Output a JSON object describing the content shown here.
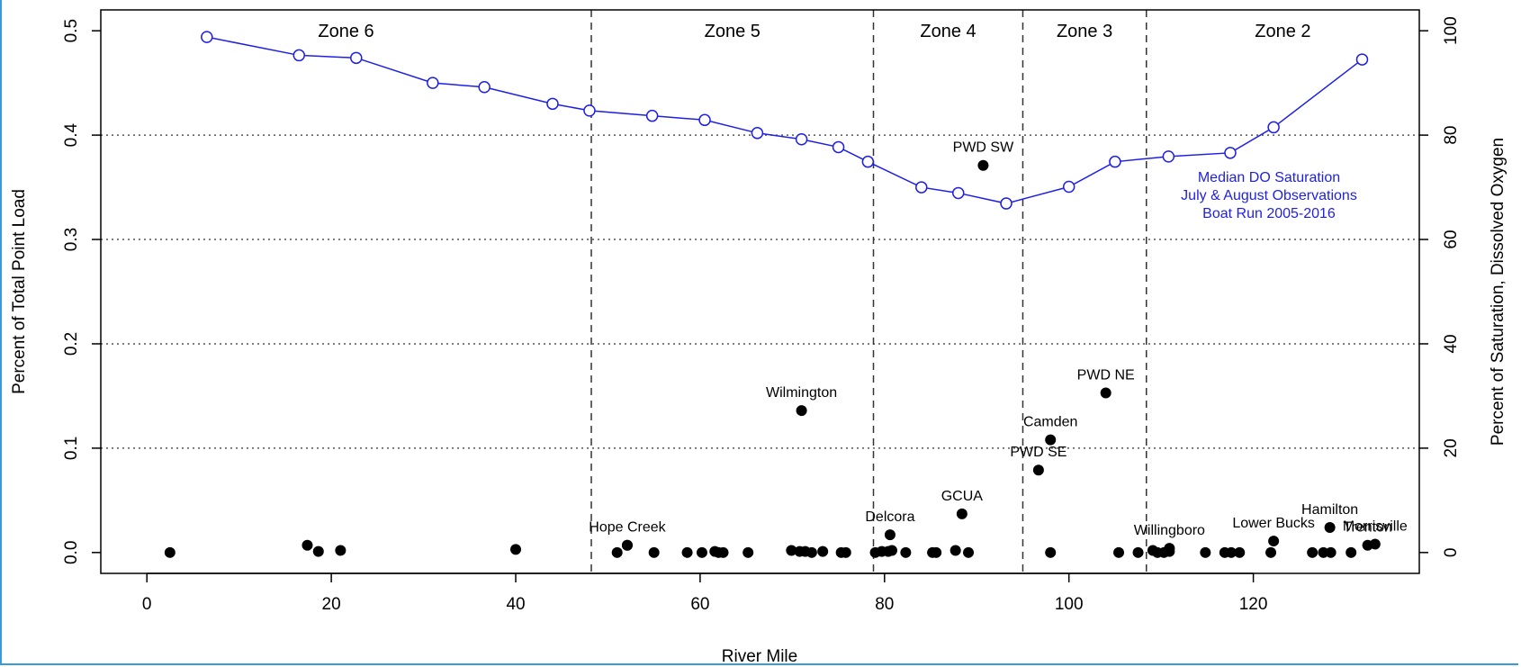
{
  "chart_data": {
    "type": "scatter",
    "xlabel": "River Mile",
    "ylabel_left": "Percent of Total Point Load",
    "ylabel_right": "Percent of Saturation, Dissolved Oxygen",
    "xlim": [
      -5,
      138
    ],
    "ylim_left": [
      -0.02,
      0.52
    ],
    "ylim_right": [
      -4,
      104
    ],
    "x_ticks": [
      0,
      20,
      40,
      60,
      80,
      100,
      120
    ],
    "y_left_ticks": [
      0.0,
      0.1,
      0.2,
      0.3,
      0.4,
      0.5
    ],
    "y_left_tick_labels": [
      "0.0",
      "0.1",
      "0.2",
      "0.3",
      "0.4",
      "0.5"
    ],
    "y_right_ticks": [
      0,
      20,
      40,
      60,
      80,
      100
    ],
    "gridlines_y_left": [
      0.1,
      0.2,
      0.3,
      0.4
    ],
    "zones": [
      {
        "label": "Zone 6",
        "x_start": -5,
        "x_end": 48.2
      },
      {
        "label": "Zone 5",
        "x_start": 48.2,
        "x_end": 78.8
      },
      {
        "label": "Zone 4",
        "x_start": 78.8,
        "x_end": 95.0
      },
      {
        "label": "Zone 3",
        "x_start": 95.0,
        "x_end": 108.4
      },
      {
        "label": "Zone 2",
        "x_start": 108.4,
        "x_end": 138
      }
    ],
    "zone_boundaries": [
      48.2,
      78.8,
      95.0,
      108.4
    ],
    "do_series": {
      "color": "#1f1fe6",
      "x": [
        6.5,
        16.5,
        22.7,
        31.0,
        36.6,
        44.0,
        48.0,
        54.8,
        60.5,
        66.2,
        71.0,
        75.0,
        78.2,
        84.0,
        88.0,
        93.2,
        100.0,
        105.0,
        110.8,
        117.5,
        122.2,
        131.8
      ],
      "y": [
        98.8,
        95.3,
        94.8,
        90.0,
        89.2,
        86.0,
        84.7,
        83.7,
        82.9,
        80.4,
        79.2,
        77.7,
        74.9,
        70.0,
        68.9,
        66.9,
        70.1,
        74.9,
        75.9,
        76.6,
        81.5,
        94.5
      ]
    },
    "do_annotation": [
      "Median DO Saturation",
      "July & August Observations",
      "Boat Run 2005-2016"
    ],
    "load_points": {
      "color": "#000000",
      "x": [
        2.5,
        17.4,
        18.6,
        21.0,
        40.0,
        51.0,
        52.1,
        55.0,
        58.6,
        60.2,
        61.6,
        62.0,
        62.5,
        65.2,
        69.9,
        70.8,
        71.4,
        72.1,
        73.3,
        75.3,
        75.8,
        79.0,
        79.7,
        80.4,
        80.8,
        82.3,
        85.2,
        85.6,
        87.7,
        89.1,
        98.0,
        105.4,
        107.5,
        109.1,
        109.6,
        110.3,
        110.9,
        110.9,
        114.8,
        116.9,
        117.6,
        118.5,
        121.9,
        126.4,
        127.6,
        128.4,
        130.6,
        132.4,
        133.2,
        71.0,
        90.7,
        104.0,
        98.0,
        96.7,
        88.4,
        80.6,
        52.1,
        122.2,
        128.3
      ],
      "y": [
        0.0,
        0.007,
        0.001,
        0.002,
        0.003,
        0.0,
        0.007,
        0.0,
        0.0,
        0.0,
        0.001,
        0.0,
        0.0,
        0.0,
        0.002,
        0.001,
        0.001,
        0.0,
        0.001,
        0.0,
        0.0,
        0.0,
        0.001,
        0.001,
        0.002,
        0.0,
        0.0,
        0.0,
        0.002,
        0.0,
        0.0,
        0.0,
        0.0,
        0.002,
        0.0,
        0.0,
        0.001,
        0.004,
        0.0,
        0.0,
        0.0,
        0.0,
        0.0,
        0.0,
        0.0,
        0.0,
        0.0,
        0.007,
        0.008,
        0.136,
        0.371,
        0.153,
        0.108,
        0.079,
        0.037,
        0.017,
        0.007,
        0.011,
        0.024
      ]
    },
    "point_labels": [
      {
        "text": "Wilmington",
        "x": 71.0,
        "y": 0.136
      },
      {
        "text": "PWD SW",
        "x": 90.7,
        "y": 0.371
      },
      {
        "text": "PWD NE",
        "x": 104.0,
        "y": 0.153
      },
      {
        "text": "Camden",
        "x": 98.0,
        "y": 0.108
      },
      {
        "text": "PWD SE",
        "x": 96.7,
        "y": 0.079
      },
      {
        "text": "GCUA",
        "x": 88.4,
        "y": 0.037
      },
      {
        "text": "Delcora",
        "x": 80.6,
        "y": 0.017
      },
      {
        "text": "Hope Creek",
        "x": 52.1,
        "y": 0.007
      },
      {
        "text": "Willingboro",
        "x": 110.9,
        "y": 0.004
      },
      {
        "text": "Lower Bucks",
        "x": 122.2,
        "y": 0.011
      },
      {
        "text": "Hamilton",
        "x": 128.3,
        "y": 0.024
      },
      {
        "text": "Trenton",
        "x": 132.4,
        "y": 0.007
      },
      {
        "text": "Morrisville",
        "x": 133.2,
        "y": 0.008
      }
    ]
  }
}
